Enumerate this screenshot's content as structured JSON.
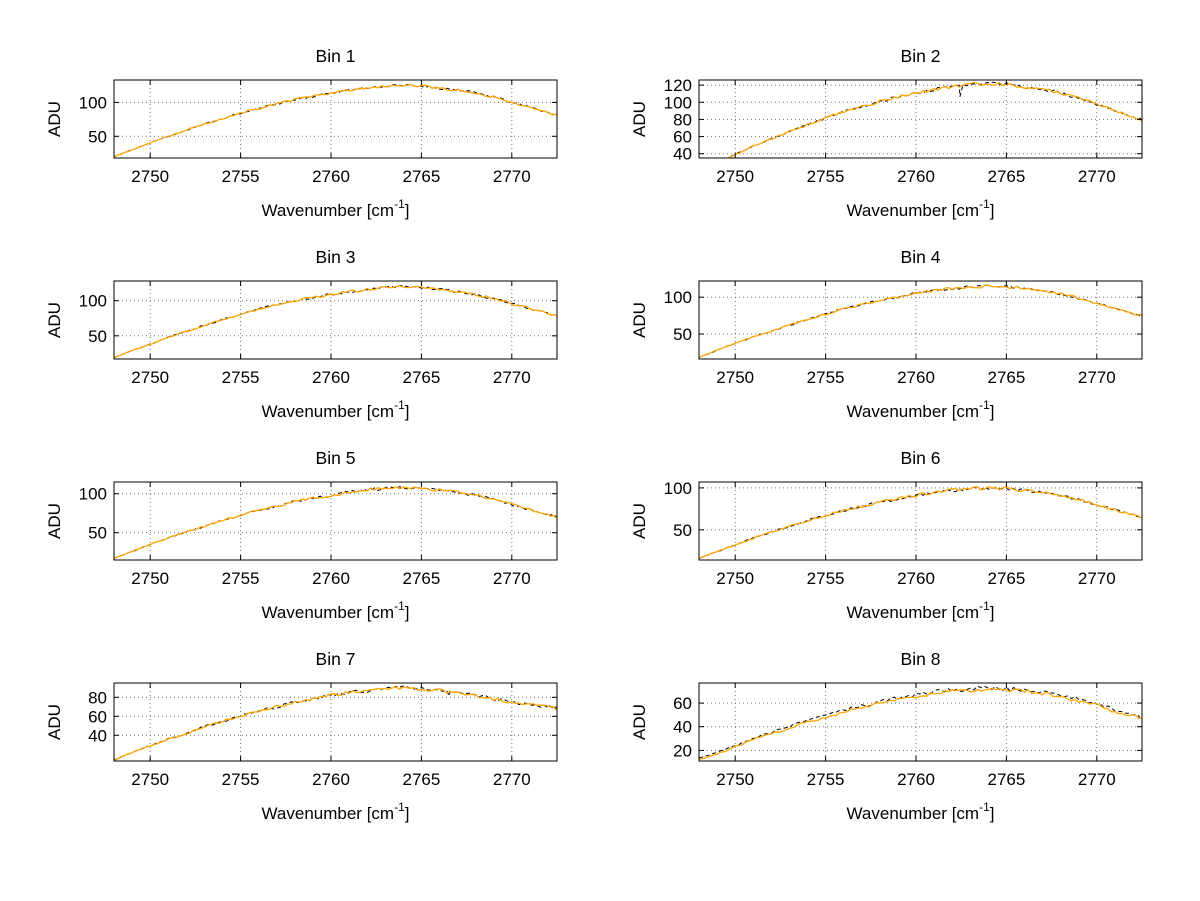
{
  "figure": {
    "background": "#ffffff",
    "axis_color": "#000000",
    "grid_style": "dotted"
  },
  "chart_data": {
    "type": "line",
    "layout": "4x2-subplot-grid",
    "xlabel": "Wavenumber [cm^{-1}]",
    "ylabel": "ADU",
    "xlim": [
      2748,
      2772.5
    ],
    "xticks": [
      2750,
      2755,
      2760,
      2765,
      2770
    ],
    "noise_amp": 2.0,
    "series_styles": [
      {
        "name": "measured-black-dashed",
        "color": "#000000",
        "line": "dashed"
      },
      {
        "name": "overlay-orange-solid",
        "color": "#FFA500",
        "line": "solid"
      }
    ],
    "x": [
      2748,
      2749,
      2750,
      2751,
      2752,
      2753,
      2754,
      2755,
      2756,
      2757,
      2758,
      2759,
      2760,
      2761,
      2762,
      2763,
      2764,
      2765,
      2766,
      2767,
      2768,
      2769,
      2770,
      2771,
      2772,
      2772.5
    ],
    "charts": [
      {
        "title": "Bin 1",
        "ylim": [
          18,
          133
        ],
        "yticks": [
          50,
          100
        ],
        "peak": 125,
        "values": [
          20,
          30,
          40,
          50,
          59,
          68,
          76,
          84,
          91,
          98,
          104,
          109,
          114,
          118,
          122,
          124,
          125,
          124,
          121,
          118,
          114,
          108,
          100,
          93,
          85,
          81
        ]
      },
      {
        "title": "Bin 2",
        "ylim": [
          35,
          126
        ],
        "yticks": [
          40,
          60,
          80,
          100,
          120
        ],
        "peak": 122,
        "spikes": [
          {
            "x": 2762.4,
            "drop": 13
          }
        ],
        "values": [
          20,
          29,
          39,
          49,
          57,
          66,
          74,
          82,
          89,
          95,
          101,
          106,
          111,
          115,
          118,
          121,
          122,
          121,
          118,
          115,
          111,
          105,
          98,
          90,
          83,
          79
        ]
      },
      {
        "title": "Bin 3",
        "ylim": [
          17,
          128
        ],
        "yticks": [
          50,
          100
        ],
        "peak": 120,
        "values": [
          19,
          29,
          38,
          48,
          56,
          65,
          73,
          80,
          88,
          94,
          100,
          104,
          109,
          113,
          116,
          119,
          120,
          119,
          116,
          113,
          109,
          103,
          96,
          89,
          82,
          78
        ]
      },
      {
        "title": "Bin 4",
        "ylim": [
          16,
          122
        ],
        "yticks": [
          50,
          100
        ],
        "peak": 115,
        "values": [
          18,
          28,
          37,
          46,
          54,
          62,
          70,
          77,
          84,
          90,
          95,
          100,
          105,
          109,
          112,
          114,
          115,
          114,
          112,
          109,
          105,
          99,
          92,
          85,
          78,
          75
        ]
      },
      {
        "title": "Bin 5",
        "ylim": [
          15,
          115
        ],
        "yticks": [
          50,
          100
        ],
        "peak": 108,
        "values": [
          17,
          26,
          35,
          43,
          51,
          58,
          66,
          72,
          79,
          84,
          90,
          94,
          98,
          102,
          105,
          107,
          108,
          107,
          105,
          102,
          98,
          93,
          86,
          80,
          73,
          70
        ]
      },
      {
        "title": "Bin 6",
        "ylim": [
          14,
          107
        ],
        "yticks": [
          50,
          100
        ],
        "peak": 100,
        "values": [
          16,
          24,
          32,
          40,
          47,
          54,
          61,
          67,
          73,
          78,
          83,
          87,
          91,
          95,
          97,
          99,
          100,
          99,
          97,
          94,
          91,
          86,
          80,
          74,
          68,
          65
        ]
      },
      {
        "title": "Bin 7",
        "ylim": [
          13,
          95
        ],
        "yticks": [
          40,
          60,
          80
        ],
        "peak": 90,
        "spikes": [
          {
            "x": 2766.5,
            "drop": 6
          }
        ],
        "values": [
          14,
          22,
          29,
          36,
          42,
          49,
          55,
          60,
          66,
          70,
          75,
          78,
          82,
          85,
          87,
          89,
          90,
          89,
          87,
          85,
          82,
          78,
          75,
          72,
          70,
          68
        ]
      },
      {
        "title": "Bin 8",
        "ylim": [
          11,
          77
        ],
        "yticks": [
          20,
          40,
          60
        ],
        "peak": 72,
        "black_offset": 1.2,
        "values": [
          12,
          17,
          23,
          29,
          34,
          39,
          44,
          48,
          53,
          56,
          60,
          63,
          66,
          68,
          70,
          71,
          72,
          71,
          70,
          68,
          66,
          62,
          58,
          53,
          49,
          47
        ]
      }
    ]
  }
}
